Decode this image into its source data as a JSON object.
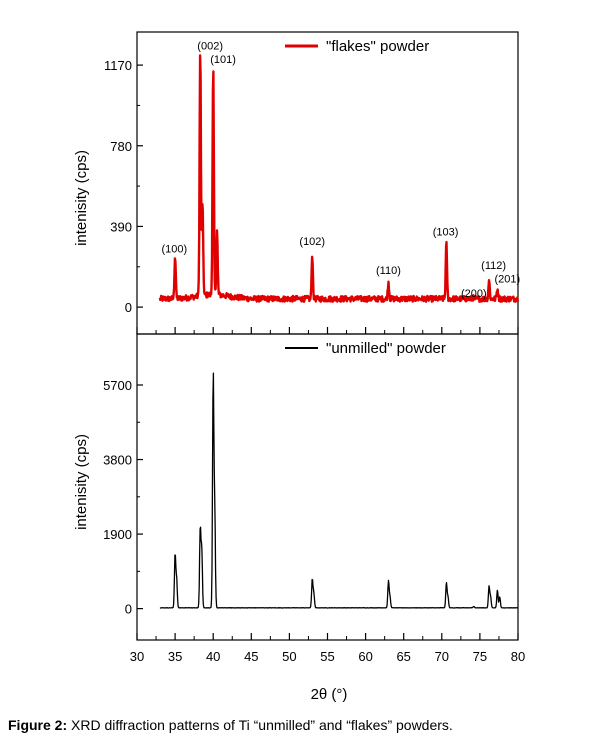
{
  "caption": {
    "label": "Figure 2:",
    "text": " XRD diffraction patterns of Ti “unmilled” and “flakes” powders."
  },
  "chart_data": [
    {
      "type": "line",
      "panel": "top",
      "ylabel": "intenisity (cps)",
      "xlim": [
        30,
        80
      ],
      "ylim": [
        -130,
        1330
      ],
      "yticks": [
        0,
        390,
        780,
        1170
      ],
      "xticks": [
        30,
        35,
        40,
        45,
        50,
        55,
        60,
        65,
        70,
        75,
        80
      ],
      "grid": false,
      "legend_position": "top-center",
      "color": "#e00000",
      "series": [
        {
          "name": "\"flakes\" powder",
          "peaks": [
            {
              "x": 35.0,
              "y": 245
            },
            {
              "x": 38.3,
              "y": 1230
            },
            {
              "x": 38.6,
              "y": 480
            },
            {
              "x": 40.0,
              "y": 1140
            },
            {
              "x": 40.5,
              "y": 350
            },
            {
              "x": 53.0,
              "y": 250
            },
            {
              "x": 63.0,
              "y": 120
            },
            {
              "x": 70.6,
              "y": 310
            },
            {
              "x": 74.1,
              "y": 45
            },
            {
              "x": 76.2,
              "y": 130
            },
            {
              "x": 77.3,
              "y": 90
            }
          ],
          "baseline": 40
        }
      ],
      "annotations": [
        {
          "text": "(100)",
          "x": 34.9,
          "y": 265
        },
        {
          "text": "(002)",
          "x": 39.6,
          "y": 1245
        },
        {
          "text": "(101)",
          "x": 41.3,
          "y": 1180
        },
        {
          "text": "(102)",
          "x": 53.0,
          "y": 300
        },
        {
          "text": "(110)",
          "x": 63.0,
          "y": 160
        },
        {
          "text": "(103)",
          "x": 70.5,
          "y": 345
        },
        {
          "text": "(200)",
          "x": 74.2,
          "y": 50
        },
        {
          "text": "(112)",
          "x": 76.8,
          "y": 185
        },
        {
          "text": "(201)",
          "x": 78.6,
          "y": 120
        }
      ]
    },
    {
      "type": "line",
      "panel": "bottom",
      "ylabel": "intenisity (cps)",
      "xlabel": "2θ (°)",
      "xlim": [
        30,
        80
      ],
      "ylim": [
        -800,
        7000
      ],
      "yticks": [
        0,
        1900,
        3800,
        5700
      ],
      "xticks": [
        30,
        35,
        40,
        45,
        50,
        55,
        60,
        65,
        70,
        75,
        80
      ],
      "grid": false,
      "legend_position": "top-center",
      "color": "#000000",
      "series": [
        {
          "name": "\"unmilled\" powder",
          "peaks": [
            {
              "x": 35.0,
              "y": 1380
            },
            {
              "x": 35.2,
              "y": 750
            },
            {
              "x": 38.3,
              "y": 2040
            },
            {
              "x": 38.5,
              "y": 1500
            },
            {
              "x": 40.0,
              "y": 5900
            },
            {
              "x": 40.2,
              "y": 2500
            },
            {
              "x": 53.0,
              "y": 750
            },
            {
              "x": 53.2,
              "y": 400
            },
            {
              "x": 63.0,
              "y": 700
            },
            {
              "x": 63.2,
              "y": 300
            },
            {
              "x": 70.6,
              "y": 650
            },
            {
              "x": 70.8,
              "y": 300
            },
            {
              "x": 74.2,
              "y": 60
            },
            {
              "x": 76.2,
              "y": 560
            },
            {
              "x": 76.4,
              "y": 300
            },
            {
              "x": 77.3,
              "y": 480
            },
            {
              "x": 77.6,
              "y": 300
            }
          ],
          "baseline": 20
        }
      ]
    }
  ]
}
